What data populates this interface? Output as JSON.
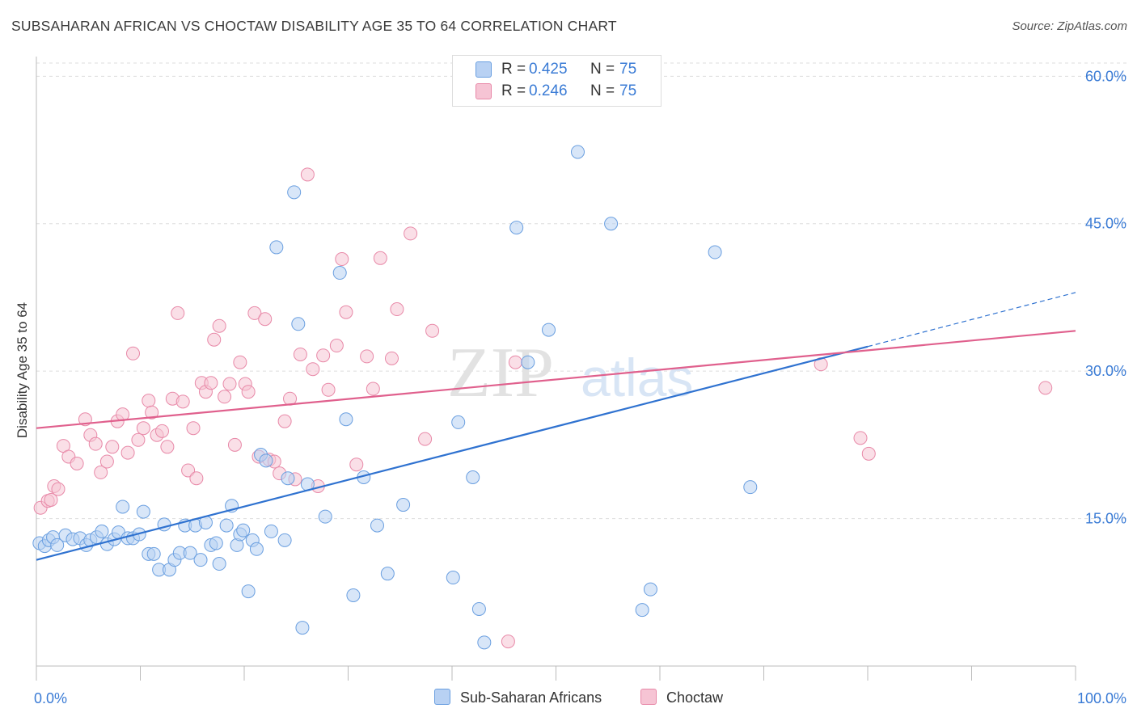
{
  "title": "SUBSAHARAN AFRICAN VS CHOCTAW DISABILITY AGE 35 TO 64 CORRELATION CHART",
  "source": "Source: ZipAtlas.com",
  "watermark": {
    "zip": "ZIP",
    "atlas": "atlas"
  },
  "colors": {
    "blue": "#6a9fe0",
    "blue_fill": "#b8d1f3",
    "blue_line": "#2f72d0",
    "pink": "#e889a8",
    "pink_fill": "#f6c4d4",
    "pink_line": "#e0608d",
    "axis_text": "#3a7bd5"
  },
  "legend": {
    "rows": [
      {
        "r_label": "R =",
        "r_value": "0.425",
        "n_label": "N =",
        "n_value": "75"
      },
      {
        "r_label": "R =",
        "r_value": "0.246",
        "n_label": "N =",
        "n_value": "75"
      }
    ]
  },
  "bottom_legend": {
    "series1": "Sub-Saharan Africans",
    "series2": "Choctaw"
  },
  "chart_data": {
    "type": "scatter",
    "xlabel": "",
    "ylabel": "Disability Age 35 to 64",
    "xlim": [
      0,
      100
    ],
    "ylim": [
      0,
      62
    ],
    "x_tick_labels": [
      "0.0%",
      "100.0%"
    ],
    "y_ticks": [
      15,
      30,
      45,
      60
    ],
    "y_tick_labels": [
      "15.0%",
      "30.0%",
      "45.0%",
      "60.0%"
    ],
    "grid": true,
    "series": [
      {
        "name": "Sub-Saharan Africans",
        "trend": {
          "x0": 0,
          "y0": 10.8,
          "x1": 80,
          "y1": 32.5,
          "dash_x1": 100,
          "dash_y1": 38.0
        },
        "points": [
          [
            0.3,
            12.5
          ],
          [
            0.8,
            12.2
          ],
          [
            1.2,
            12.8
          ],
          [
            1.6,
            13.1
          ],
          [
            2.0,
            12.3
          ],
          [
            2.8,
            13.3
          ],
          [
            3.5,
            12.9
          ],
          [
            4.2,
            13.0
          ],
          [
            4.8,
            12.3
          ],
          [
            5.2,
            12.8
          ],
          [
            5.8,
            13.1
          ],
          [
            6.3,
            13.7
          ],
          [
            6.8,
            12.4
          ],
          [
            7.5,
            12.9
          ],
          [
            7.9,
            13.6
          ],
          [
            8.3,
            16.2
          ],
          [
            8.8,
            13.0
          ],
          [
            9.3,
            13.0
          ],
          [
            9.9,
            13.4
          ],
          [
            10.3,
            15.7
          ],
          [
            10.8,
            11.4
          ],
          [
            11.3,
            11.4
          ],
          [
            11.8,
            9.8
          ],
          [
            12.3,
            14.4
          ],
          [
            12.8,
            9.8
          ],
          [
            13.3,
            10.8
          ],
          [
            13.8,
            11.5
          ],
          [
            14.3,
            14.3
          ],
          [
            14.8,
            11.5
          ],
          [
            15.3,
            14.3
          ],
          [
            15.8,
            10.8
          ],
          [
            16.3,
            14.6
          ],
          [
            16.8,
            12.3
          ],
          [
            17.3,
            12.5
          ],
          [
            17.6,
            10.4
          ],
          [
            18.3,
            14.3
          ],
          [
            18.8,
            16.3
          ],
          [
            19.3,
            12.3
          ],
          [
            19.6,
            13.4
          ],
          [
            19.9,
            13.8
          ],
          [
            20.4,
            7.6
          ],
          [
            20.8,
            12.8
          ],
          [
            21.2,
            11.9
          ],
          [
            21.6,
            21.5
          ],
          [
            22.1,
            20.9
          ],
          [
            22.6,
            13.7
          ],
          [
            23.1,
            42.6
          ],
          [
            23.9,
            12.8
          ],
          [
            24.2,
            19.1
          ],
          [
            24.8,
            48.2
          ],
          [
            25.2,
            34.8
          ],
          [
            25.6,
            3.9
          ],
          [
            26.1,
            18.5
          ],
          [
            27.8,
            15.2
          ],
          [
            29.2,
            40.0
          ],
          [
            29.8,
            25.1
          ],
          [
            30.5,
            7.2
          ],
          [
            31.5,
            19.2
          ],
          [
            32.8,
            14.3
          ],
          [
            33.8,
            9.4
          ],
          [
            35.3,
            16.4
          ],
          [
            40.1,
            9.0
          ],
          [
            40.6,
            24.8
          ],
          [
            42.0,
            19.2
          ],
          [
            42.6,
            5.8
          ],
          [
            43.1,
            2.4
          ],
          [
            46.2,
            44.6
          ],
          [
            47.3,
            30.9
          ],
          [
            49.3,
            34.2
          ],
          [
            52.1,
            52.3
          ],
          [
            55.3,
            45.0
          ],
          [
            58.3,
            5.7
          ],
          [
            59.1,
            7.8
          ],
          [
            65.3,
            42.1
          ],
          [
            68.7,
            18.2
          ]
        ]
      },
      {
        "name": "Choctaw",
        "trend": {
          "x0": 0,
          "y0": 24.2,
          "x1": 100,
          "y1": 34.1
        },
        "points": [
          [
            0.4,
            16.1
          ],
          [
            1.1,
            16.8
          ],
          [
            1.4,
            16.9
          ],
          [
            1.7,
            18.3
          ],
          [
            2.1,
            18.0
          ],
          [
            2.6,
            22.4
          ],
          [
            3.1,
            21.3
          ],
          [
            3.9,
            20.6
          ],
          [
            4.7,
            25.1
          ],
          [
            5.2,
            23.5
          ],
          [
            5.7,
            22.6
          ],
          [
            6.2,
            19.7
          ],
          [
            6.8,
            20.8
          ],
          [
            7.3,
            22.3
          ],
          [
            7.8,
            24.9
          ],
          [
            8.3,
            25.6
          ],
          [
            8.8,
            21.7
          ],
          [
            9.3,
            31.8
          ],
          [
            9.8,
            23.0
          ],
          [
            10.3,
            24.2
          ],
          [
            10.8,
            27.0
          ],
          [
            11.1,
            25.8
          ],
          [
            11.6,
            23.5
          ],
          [
            12.1,
            23.9
          ],
          [
            12.6,
            22.3
          ],
          [
            13.1,
            27.2
          ],
          [
            13.6,
            35.9
          ],
          [
            14.1,
            26.9
          ],
          [
            14.6,
            19.9
          ],
          [
            15.1,
            24.2
          ],
          [
            15.4,
            19.1
          ],
          [
            15.9,
            28.8
          ],
          [
            16.3,
            27.9
          ],
          [
            16.8,
            28.8
          ],
          [
            17.1,
            33.2
          ],
          [
            17.6,
            34.6
          ],
          [
            18.1,
            27.4
          ],
          [
            18.6,
            28.7
          ],
          [
            19.1,
            22.5
          ],
          [
            19.6,
            30.9
          ],
          [
            20.1,
            28.7
          ],
          [
            20.4,
            27.9
          ],
          [
            21.0,
            35.9
          ],
          [
            21.4,
            21.3
          ],
          [
            22.0,
            35.3
          ],
          [
            22.4,
            21.0
          ],
          [
            22.9,
            20.8
          ],
          [
            23.4,
            19.6
          ],
          [
            23.9,
            24.9
          ],
          [
            24.4,
            27.2
          ],
          [
            24.9,
            19.0
          ],
          [
            25.4,
            31.7
          ],
          [
            26.1,
            50.0
          ],
          [
            26.6,
            30.2
          ],
          [
            27.1,
            18.3
          ],
          [
            27.6,
            31.6
          ],
          [
            28.1,
            28.1
          ],
          [
            28.9,
            32.6
          ],
          [
            29.4,
            41.4
          ],
          [
            29.8,
            36.0
          ],
          [
            30.8,
            20.5
          ],
          [
            31.8,
            31.5
          ],
          [
            32.4,
            28.2
          ],
          [
            33.1,
            41.5
          ],
          [
            34.2,
            31.3
          ],
          [
            34.7,
            36.3
          ],
          [
            36.0,
            44.0
          ],
          [
            37.4,
            23.1
          ],
          [
            38.1,
            34.1
          ],
          [
            45.4,
            2.5
          ],
          [
            46.1,
            30.9
          ],
          [
            75.5,
            30.7
          ],
          [
            79.3,
            23.2
          ],
          [
            80.1,
            21.6
          ],
          [
            97.1,
            28.3
          ]
        ]
      }
    ]
  }
}
